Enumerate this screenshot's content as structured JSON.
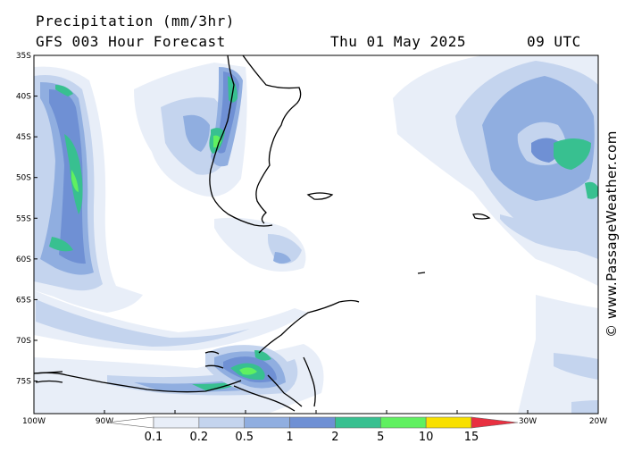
{
  "header": {
    "title": "Precipitation (mm/3hr)",
    "subtitle": "GFS 003 Hour Forecast",
    "date": "Thu 01 May 2025",
    "time": "09 UTC"
  },
  "copyright": "© www.PassageWeather.com",
  "map": {
    "lon_range": [
      -100,
      -20
    ],
    "lat_range": [
      -35,
      -76
    ],
    "lat_labels": [
      "35S",
      "40S",
      "45S",
      "50S",
      "55S",
      "60S",
      "65S",
      "70S",
      "75S"
    ],
    "lon_labels": [
      "100W",
      "90W",
      "80W",
      "70W",
      "60W",
      "50W",
      "40W",
      "30W",
      "20W"
    ],
    "colors": {
      "c01": "#e8eef8",
      "c02": "#c4d4ee",
      "c05": "#90aee0",
      "c1": "#6f90d4",
      "c2": "#38c090",
      "c5": "#60f060",
      "coast": "#000000"
    }
  },
  "legend": {
    "labels": [
      "0.1",
      "0.2",
      "0.5",
      "1",
      "2",
      "5",
      "10",
      "15"
    ],
    "colors": [
      "#e8eef8",
      "#c4d4ee",
      "#90aee0",
      "#6f90d4",
      "#38c090",
      "#60f060",
      "#f8e000",
      "#f89020",
      "#e83040"
    ]
  }
}
